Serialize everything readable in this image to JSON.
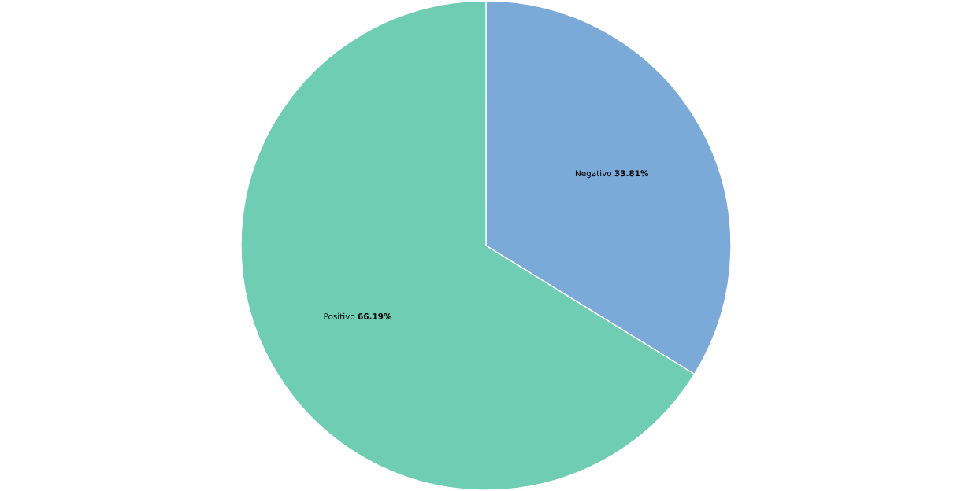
{
  "chart_data": {
    "type": "pie",
    "categories": [
      "Negativo",
      "Positivo"
    ],
    "values": [
      33.81,
      66.19
    ],
    "colors": [
      "#7baad9",
      "#6fcdb3"
    ],
    "value_labels": [
      "33.81%",
      "66.19%"
    ],
    "legend": false
  }
}
